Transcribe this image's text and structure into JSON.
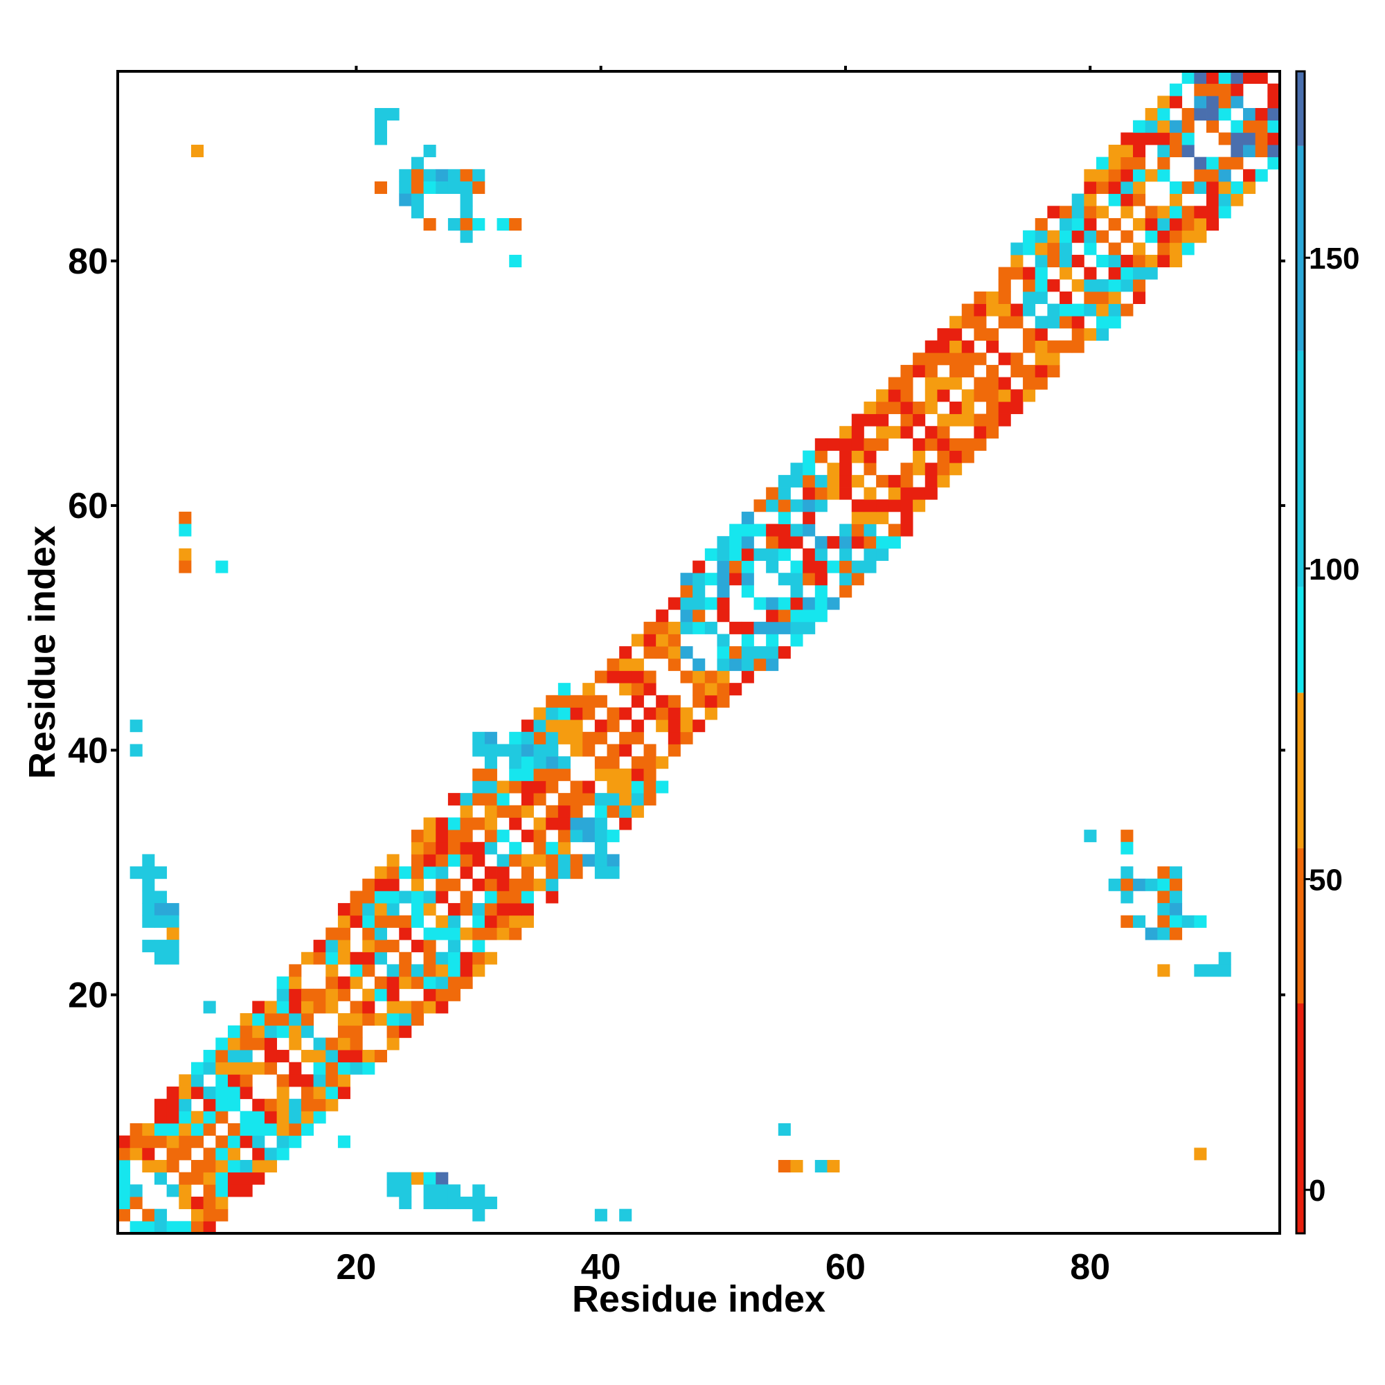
{
  "chart_data": {
    "type": "heatmap",
    "title": "",
    "xlabel": "Residue index",
    "ylabel": "Residue index",
    "xlim": [
      0.5,
      95.5
    ],
    "ylim": [
      0.5,
      95.5
    ],
    "x_ticks": [
      20,
      40,
      60,
      80
    ],
    "y_ticks": [
      20,
      40,
      60,
      80
    ],
    "grid": false,
    "colorbar": {
      "ticks": [
        0,
        50,
        100,
        150
      ],
      "range": [
        -7,
        180
      ],
      "bands": [
        {
          "from": -7,
          "to": 30,
          "color": "#e8200f"
        },
        {
          "from": 30,
          "to": 55,
          "color": "#f06a0a"
        },
        {
          "from": 55,
          "to": 80,
          "color": "#f59c10"
        },
        {
          "from": 80,
          "to": 97,
          "color": "#16e6ee"
        },
        {
          "from": 97,
          "to": 135,
          "color": "#20c9e0"
        },
        {
          "from": 135,
          "to": 168,
          "color": "#2ba8d8"
        },
        {
          "from": 168,
          "to": 180,
          "color": "#4a6fae"
        }
      ]
    },
    "colors": {
      "red": "#e8200f",
      "orange": "#f06a0a",
      "amber": "#f59c10",
      "cyan": "#16e6ee",
      "sky": "#20c9e0",
      "blue": "#2ba8d8",
      "steel": "#4a6fae"
    },
    "diagonal_bands": [
      {
        "from": 1,
        "to": 16,
        "offsets": [
          1,
          2,
          3,
          4,
          5,
          6,
          7
        ],
        "palette": [
          "red",
          "orange",
          "amber",
          "sky",
          "cyan"
        ]
      },
      {
        "from": 17,
        "to": 37,
        "offsets": [
          1,
          2,
          3,
          4,
          5,
          6,
          7,
          8
        ],
        "palette": [
          "orange",
          "red",
          "orange",
          "sky",
          "cyan",
          "amber"
        ]
      },
      {
        "from": 38,
        "to": 46,
        "offsets": [
          1,
          2,
          3,
          4,
          5,
          6
        ],
        "palette": [
          "orange",
          "red",
          "amber",
          "orange"
        ]
      },
      {
        "from": 47,
        "to": 58,
        "offsets": [
          1,
          2,
          3,
          4,
          5,
          6,
          7
        ],
        "palette": [
          "orange",
          "red",
          "sky",
          "cyan",
          "blue"
        ]
      },
      {
        "from": 59,
        "to": 73,
        "offsets": [
          1,
          2,
          3,
          4,
          5,
          6
        ],
        "palette": [
          "red",
          "orange",
          "amber",
          "orange"
        ]
      },
      {
        "from": 74,
        "to": 86,
        "offsets": [
          1,
          2,
          3,
          4,
          5,
          6,
          7
        ],
        "palette": [
          "orange",
          "red",
          "sky",
          "cyan",
          "amber"
        ]
      },
      {
        "from": 87,
        "to": 95,
        "offsets": [
          1,
          2,
          3,
          4,
          5,
          6,
          7
        ],
        "palette": [
          "orange",
          "red",
          "cyan",
          "blue",
          "steel"
        ]
      }
    ],
    "cells": [
      {
        "x": 1,
        "y": 1,
        "c": "cyan"
      },
      {
        "x": 2,
        "y": 1,
        "c": "cyan"
      },
      {
        "x": 3,
        "y": 1,
        "c": "cyan"
      },
      {
        "x": 1,
        "y": 3,
        "c": "cyan"
      },
      {
        "x": 1,
        "y": 4,
        "c": "cyan"
      },
      {
        "x": 94,
        "y": 95,
        "c": "red"
      },
      {
        "x": 95,
        "y": 94,
        "c": "red"
      },
      {
        "x": 22,
        "y": 92,
        "c": "sky"
      },
      {
        "x": 23,
        "y": 92,
        "c": "sky"
      },
      {
        "x": 22,
        "y": 91,
        "c": "sky"
      },
      {
        "x": 22,
        "y": 90,
        "c": "sky"
      },
      {
        "x": 7,
        "y": 89,
        "c": "amber"
      },
      {
        "x": 26,
        "y": 89,
        "c": "sky"
      },
      {
        "x": 25,
        "y": 88,
        "c": "sky"
      },
      {
        "x": 24,
        "y": 87,
        "c": "sky"
      },
      {
        "x": 25,
        "y": 87,
        "c": "orange"
      },
      {
        "x": 26,
        "y": 87,
        "c": "sky"
      },
      {
        "x": 27,
        "y": 87,
        "c": "blue"
      },
      {
        "x": 28,
        "y": 87,
        "c": "sky"
      },
      {
        "x": 29,
        "y": 87,
        "c": "orange"
      },
      {
        "x": 30,
        "y": 87,
        "c": "sky"
      },
      {
        "x": 22,
        "y": 86,
        "c": "orange"
      },
      {
        "x": 24,
        "y": 86,
        "c": "sky"
      },
      {
        "x": 25,
        "y": 86,
        "c": "orange"
      },
      {
        "x": 26,
        "y": 86,
        "c": "cyan"
      },
      {
        "x": 27,
        "y": 86,
        "c": "sky"
      },
      {
        "x": 28,
        "y": 86,
        "c": "sky"
      },
      {
        "x": 29,
        "y": 86,
        "c": "sky"
      },
      {
        "x": 30,
        "y": 86,
        "c": "orange"
      },
      {
        "x": 24,
        "y": 85,
        "c": "blue"
      },
      {
        "x": 25,
        "y": 85,
        "c": "sky"
      },
      {
        "x": 29,
        "y": 85,
        "c": "sky"
      },
      {
        "x": 25,
        "y": 84,
        "c": "sky"
      },
      {
        "x": 29,
        "y": 84,
        "c": "sky"
      },
      {
        "x": 26,
        "y": 83,
        "c": "orange"
      },
      {
        "x": 28,
        "y": 83,
        "c": "sky"
      },
      {
        "x": 29,
        "y": 83,
        "c": "orange"
      },
      {
        "x": 30,
        "y": 83,
        "c": "cyan"
      },
      {
        "x": 32,
        "y": 83,
        "c": "cyan"
      },
      {
        "x": 33,
        "y": 83,
        "c": "orange"
      },
      {
        "x": 29,
        "y": 82,
        "c": "sky"
      },
      {
        "x": 33,
        "y": 80,
        "c": "cyan"
      },
      {
        "x": 6,
        "y": 59,
        "c": "orange"
      },
      {
        "x": 6,
        "y": 58,
        "c": "cyan"
      },
      {
        "x": 6,
        "y": 56,
        "c": "amber"
      },
      {
        "x": 6,
        "y": 55,
        "c": "orange"
      },
      {
        "x": 9,
        "y": 55,
        "c": "cyan"
      },
      {
        "x": 2,
        "y": 42,
        "c": "sky"
      },
      {
        "x": 2,
        "y": 40,
        "c": "sky"
      },
      {
        "x": 30,
        "y": 41,
        "c": "sky"
      },
      {
        "x": 31,
        "y": 41,
        "c": "blue"
      },
      {
        "x": 33,
        "y": 41,
        "c": "cyan"
      },
      {
        "x": 34,
        "y": 41,
        "c": "sky"
      },
      {
        "x": 30,
        "y": 40,
        "c": "sky"
      },
      {
        "x": 31,
        "y": 40,
        "c": "sky"
      },
      {
        "x": 33,
        "y": 40,
        "c": "sky"
      },
      {
        "x": 34,
        "y": 40,
        "c": "blue"
      },
      {
        "x": 35,
        "y": 40,
        "c": "sky"
      },
      {
        "x": 31,
        "y": 39,
        "c": "sky"
      },
      {
        "x": 33,
        "y": 39,
        "c": "sky"
      },
      {
        "x": 35,
        "y": 39,
        "c": "sky"
      },
      {
        "x": 36,
        "y": 39,
        "c": "blue"
      },
      {
        "x": 37,
        "y": 39,
        "c": "sky"
      },
      {
        "x": 38,
        "y": 34,
        "c": "blue"
      },
      {
        "x": 39,
        "y": 34,
        "c": "blue"
      },
      {
        "x": 40,
        "y": 34,
        "c": "sky"
      },
      {
        "x": 38,
        "y": 33,
        "c": "sky"
      },
      {
        "x": 39,
        "y": 33,
        "c": "blue"
      },
      {
        "x": 40,
        "y": 33,
        "c": "sky"
      },
      {
        "x": 41,
        "y": 33,
        "c": "cyan"
      },
      {
        "x": 39,
        "y": 31,
        "c": "blue"
      },
      {
        "x": 40,
        "y": 31,
        "c": "sky"
      },
      {
        "x": 41,
        "y": 31,
        "c": "blue"
      },
      {
        "x": 40,
        "y": 30,
        "c": "sky"
      },
      {
        "x": 41,
        "y": 30,
        "c": "sky"
      },
      {
        "x": 3,
        "y": 31,
        "c": "sky"
      },
      {
        "x": 2,
        "y": 30,
        "c": "sky"
      },
      {
        "x": 3,
        "y": 30,
        "c": "sky"
      },
      {
        "x": 4,
        "y": 30,
        "c": "sky"
      },
      {
        "x": 3,
        "y": 29,
        "c": "sky"
      },
      {
        "x": 3,
        "y": 28,
        "c": "sky"
      },
      {
        "x": 4,
        "y": 28,
        "c": "sky"
      },
      {
        "x": 3,
        "y": 27,
        "c": "sky"
      },
      {
        "x": 4,
        "y": 27,
        "c": "blue"
      },
      {
        "x": 5,
        "y": 27,
        "c": "blue"
      },
      {
        "x": 3,
        "y": 26,
        "c": "sky"
      },
      {
        "x": 4,
        "y": 26,
        "c": "sky"
      },
      {
        "x": 5,
        "y": 26,
        "c": "sky"
      },
      {
        "x": 5,
        "y": 25,
        "c": "amber"
      },
      {
        "x": 3,
        "y": 24,
        "c": "sky"
      },
      {
        "x": 4,
        "y": 24,
        "c": "sky"
      },
      {
        "x": 5,
        "y": 24,
        "c": "sky"
      },
      {
        "x": 4,
        "y": 23,
        "c": "sky"
      },
      {
        "x": 5,
        "y": 23,
        "c": "sky"
      },
      {
        "x": 8,
        "y": 19,
        "c": "sky"
      },
      {
        "x": 19,
        "y": 8,
        "c": "cyan"
      },
      {
        "x": 23,
        "y": 5,
        "c": "sky"
      },
      {
        "x": 24,
        "y": 5,
        "c": "sky"
      },
      {
        "x": 25,
        "y": 5,
        "c": "amber"
      },
      {
        "x": 26,
        "y": 5,
        "c": "cyan"
      },
      {
        "x": 27,
        "y": 5,
        "c": "steel"
      },
      {
        "x": 23,
        "y": 4,
        "c": "sky"
      },
      {
        "x": 24,
        "y": 4,
        "c": "sky"
      },
      {
        "x": 26,
        "y": 4,
        "c": "sky"
      },
      {
        "x": 27,
        "y": 4,
        "c": "sky"
      },
      {
        "x": 28,
        "y": 4,
        "c": "sky"
      },
      {
        "x": 30,
        "y": 4,
        "c": "sky"
      },
      {
        "x": 24,
        "y": 3,
        "c": "sky"
      },
      {
        "x": 26,
        "y": 3,
        "c": "sky"
      },
      {
        "x": 27,
        "y": 3,
        "c": "sky"
      },
      {
        "x": 28,
        "y": 3,
        "c": "sky"
      },
      {
        "x": 29,
        "y": 3,
        "c": "sky"
      },
      {
        "x": 30,
        "y": 3,
        "c": "sky"
      },
      {
        "x": 31,
        "y": 3,
        "c": "sky"
      },
      {
        "x": 30,
        "y": 2,
        "c": "sky"
      },
      {
        "x": 40,
        "y": 2,
        "c": "sky"
      },
      {
        "x": 42,
        "y": 2,
        "c": "sky"
      },
      {
        "x": 55,
        "y": 9,
        "c": "sky"
      },
      {
        "x": 55,
        "y": 6,
        "c": "orange"
      },
      {
        "x": 56,
        "y": 6,
        "c": "amber"
      },
      {
        "x": 58,
        "y": 6,
        "c": "sky"
      },
      {
        "x": 59,
        "y": 6,
        "c": "amber"
      },
      {
        "x": 89,
        "y": 7,
        "c": "amber"
      },
      {
        "x": 80,
        "y": 33,
        "c": "sky"
      },
      {
        "x": 83,
        "y": 33,
        "c": "orange"
      },
      {
        "x": 83,
        "y": 32,
        "c": "cyan"
      },
      {
        "x": 83,
        "y": 30,
        "c": "sky"
      },
      {
        "x": 86,
        "y": 30,
        "c": "orange"
      },
      {
        "x": 87,
        "y": 30,
        "c": "sky"
      },
      {
        "x": 82,
        "y": 29,
        "c": "sky"
      },
      {
        "x": 83,
        "y": 29,
        "c": "orange"
      },
      {
        "x": 84,
        "y": 29,
        "c": "blue"
      },
      {
        "x": 85,
        "y": 29,
        "c": "sky"
      },
      {
        "x": 86,
        "y": 29,
        "c": "cyan"
      },
      {
        "x": 87,
        "y": 29,
        "c": "orange"
      },
      {
        "x": 83,
        "y": 28,
        "c": "sky"
      },
      {
        "x": 86,
        "y": 28,
        "c": "orange"
      },
      {
        "x": 87,
        "y": 28,
        "c": "sky"
      },
      {
        "x": 86,
        "y": 27,
        "c": "sky"
      },
      {
        "x": 87,
        "y": 27,
        "c": "blue"
      },
      {
        "x": 83,
        "y": 26,
        "c": "orange"
      },
      {
        "x": 84,
        "y": 26,
        "c": "sky"
      },
      {
        "x": 86,
        "y": 26,
        "c": "orange"
      },
      {
        "x": 87,
        "y": 26,
        "c": "cyan"
      },
      {
        "x": 88,
        "y": 26,
        "c": "sky"
      },
      {
        "x": 89,
        "y": 26,
        "c": "cyan"
      },
      {
        "x": 85,
        "y": 25,
        "c": "blue"
      },
      {
        "x": 86,
        "y": 25,
        "c": "sky"
      },
      {
        "x": 87,
        "y": 25,
        "c": "orange"
      },
      {
        "x": 91,
        "y": 23,
        "c": "sky"
      },
      {
        "x": 86,
        "y": 22,
        "c": "amber"
      },
      {
        "x": 89,
        "y": 22,
        "c": "sky"
      },
      {
        "x": 90,
        "y": 22,
        "c": "sky"
      },
      {
        "x": 91,
        "y": 22,
        "c": "sky"
      }
    ]
  }
}
